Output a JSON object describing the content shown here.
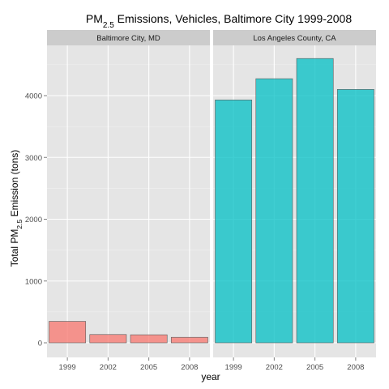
{
  "chart_data": {
    "type": "bar",
    "title": {
      "prefix": "PM",
      "subscript": "2.5",
      "suffix": " Emissions, Vehicles, Baltimore City 1999-2008"
    },
    "xlabel": "year",
    "ylabel": {
      "prefix": "Total PM",
      "subscript": "2.5",
      "suffix": " Emission (tons)"
    },
    "ylim": [
      0,
      4800
    ],
    "yticks": [
      0,
      1000,
      2000,
      3000,
      4000
    ],
    "categories": [
      "1999",
      "2002",
      "2005",
      "2008"
    ],
    "panels": [
      {
        "name": "Baltimore City, MD",
        "color": "#F8766D",
        "values": [
          347,
          134,
          130,
          89
        ]
      },
      {
        "name": "Los Angeles County, CA",
        "color": "#00BFC4",
        "values": [
          3931,
          4274,
          4601,
          4101
        ]
      }
    ],
    "grid": true,
    "legend": "none"
  },
  "style": {
    "panel_bg": "#E5E5E5",
    "strip_bg": "#CCCCCC",
    "grid_major": "#FFFFFF",
    "grid_minor": "#F2F2F2",
    "bar_outline": "#5a5a5a"
  }
}
